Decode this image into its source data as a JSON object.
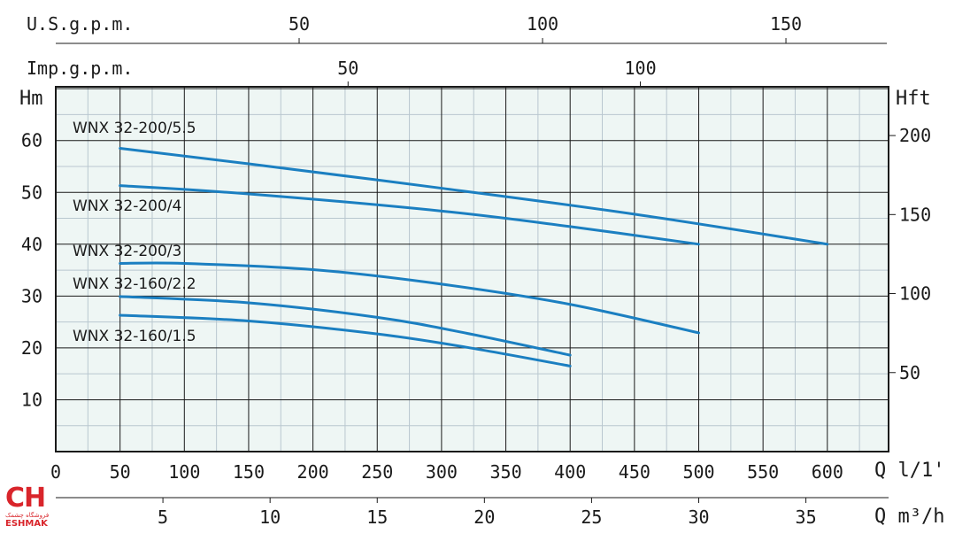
{
  "chart_data": {
    "type": "line",
    "x_main": {
      "unit_label": "Q l/1'",
      "ticks": [
        0,
        50,
        100,
        150,
        200,
        250,
        300,
        350,
        400,
        450,
        500,
        550,
        600
      ],
      "range": [
        0,
        650
      ]
    },
    "x_m3h": {
      "unit_label": "Q m³/h",
      "ticks": [
        5,
        10,
        15,
        20,
        25,
        30,
        35
      ]
    },
    "x_usgpm": {
      "unit_label": "U.S.g.p.m.",
      "ticks": [
        50,
        100,
        150
      ]
    },
    "x_impgpm": {
      "unit_label": "Imp.g.p.m.",
      "ticks": [
        50,
        100
      ]
    },
    "y_left": {
      "unit_label": "Hm",
      "ticks": [
        10,
        20,
        30,
        40,
        50,
        60
      ],
      "range": [
        0,
        70
      ]
    },
    "y_right": {
      "unit_label": "Hft",
      "ticks": [
        50,
        100,
        150,
        200
      ]
    },
    "grid": true,
    "series": [
      {
        "name": "WNX 32-200/5.5",
        "x": [
          50,
          150,
          300,
          450,
          600
        ],
        "y": [
          58.5,
          55.5,
          50.8,
          45.8,
          40
        ]
      },
      {
        "name": "WNX 32-200/4",
        "x": [
          50,
          150,
          300,
          400,
          500
        ],
        "y": [
          51.3,
          49.7,
          46.4,
          43.4,
          40
        ]
      },
      {
        "name": "WNX 32-200/3",
        "x": [
          50,
          100,
          200,
          300,
          400,
          500
        ],
        "y": [
          36.3,
          36.3,
          35.1,
          32.3,
          28.4,
          22.9
        ]
      },
      {
        "name": "WNX 32-160/2.2",
        "x": [
          50,
          150,
          250,
          320,
          400
        ],
        "y": [
          29.9,
          28.7,
          25.9,
          22.8,
          18.6
        ]
      },
      {
        "name": "WNX 32-160/1.5",
        "x": [
          50,
          150,
          250,
          320,
          400
        ],
        "y": [
          26.3,
          25.2,
          22.7,
          20.1,
          16.5
        ]
      }
    ]
  },
  "logo": {
    "mark": "CH",
    "farsi": "فروشگاه چشمک",
    "en": "ESHMAK"
  },
  "colors": {
    "curve": "#1b7fc1",
    "plot_bg": "#eef6f4",
    "logo": "#d9252b"
  }
}
